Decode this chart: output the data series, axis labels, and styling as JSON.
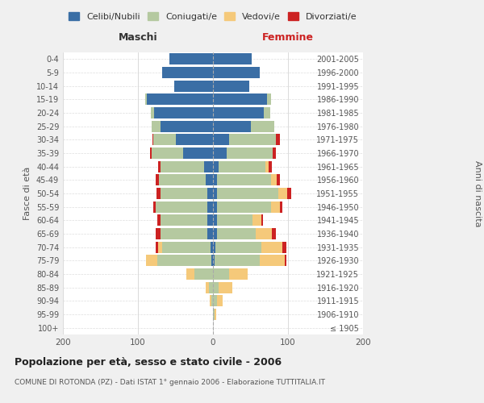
{
  "age_groups": [
    "100+",
    "95-99",
    "90-94",
    "85-89",
    "80-84",
    "75-79",
    "70-74",
    "65-69",
    "60-64",
    "55-59",
    "50-54",
    "45-49",
    "40-44",
    "35-39",
    "30-34",
    "25-29",
    "20-24",
    "15-19",
    "10-14",
    "5-9",
    "0-4"
  ],
  "birth_years": [
    "≤ 1905",
    "1906-1910",
    "1911-1915",
    "1916-1920",
    "1921-1925",
    "1926-1930",
    "1931-1935",
    "1936-1940",
    "1941-1945",
    "1946-1950",
    "1951-1955",
    "1956-1960",
    "1961-1965",
    "1966-1970",
    "1971-1975",
    "1976-1980",
    "1981-1985",
    "1986-1990",
    "1991-1995",
    "1996-2000",
    "2001-2005"
  ],
  "males_celibi": [
    0,
    0,
    0,
    0,
    0,
    2,
    3,
    8,
    8,
    8,
    8,
    10,
    12,
    40,
    50,
    70,
    78,
    88,
    52,
    68,
    58
  ],
  "males_coniugati": [
    0,
    0,
    2,
    5,
    25,
    72,
    65,
    62,
    62,
    68,
    62,
    62,
    58,
    42,
    30,
    12,
    5,
    2,
    0,
    0,
    0
  ],
  "males_vedovi": [
    0,
    0,
    2,
    5,
    10,
    15,
    5,
    0,
    0,
    0,
    0,
    0,
    0,
    0,
    0,
    0,
    0,
    0,
    0,
    0,
    0
  ],
  "males_divorziati": [
    0,
    0,
    0,
    0,
    0,
    0,
    3,
    6,
    4,
    4,
    5,
    4,
    3,
    2,
    1,
    0,
    0,
    0,
    0,
    0,
    0
  ],
  "females_nubili": [
    0,
    0,
    0,
    0,
    0,
    2,
    3,
    5,
    5,
    5,
    5,
    5,
    8,
    18,
    22,
    50,
    68,
    72,
    48,
    62,
    52
  ],
  "females_coniugate": [
    0,
    2,
    5,
    8,
    22,
    60,
    62,
    52,
    48,
    72,
    82,
    72,
    62,
    62,
    62,
    32,
    8,
    5,
    0,
    0,
    0
  ],
  "females_vedove": [
    0,
    2,
    8,
    18,
    24,
    34,
    28,
    22,
    12,
    12,
    12,
    8,
    4,
    0,
    0,
    0,
    0,
    0,
    0,
    0,
    0
  ],
  "females_divorziate": [
    0,
    0,
    0,
    0,
    0,
    2,
    5,
    5,
    2,
    4,
    5,
    4,
    4,
    4,
    5,
    0,
    0,
    0,
    0,
    0,
    0
  ],
  "colors": {
    "celibi": "#3a6ea5",
    "coniugati": "#b5c9a0",
    "vedovi": "#f5c97a",
    "divorziati": "#cc2222"
  },
  "xlim": 200,
  "title": "Popolazione per età, sesso e stato civile - 2006",
  "subtitle": "COMUNE DI ROTONDA (PZ) - Dati ISTAT 1° gennaio 2006 - Elaborazione TUTTITALIA.IT",
  "ylabel_left": "Fasce di età",
  "ylabel_right": "Anni di nascita",
  "xlabel_left": "Maschi",
  "xlabel_right": "Femmine",
  "background_color": "#f0f0f0",
  "plot_bg": "#ffffff"
}
